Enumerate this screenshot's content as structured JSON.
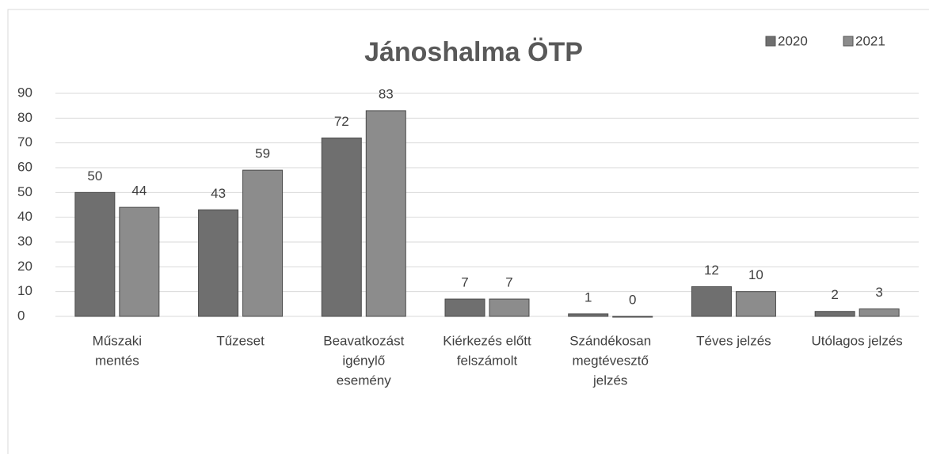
{
  "chart_data": {
    "type": "bar",
    "title": "Jánoshalma ÖTP",
    "categories": [
      [
        "Műszaki",
        "mentés"
      ],
      [
        "Tűzeset"
      ],
      [
        "Beavatkozást",
        "igénylő",
        "esemény"
      ],
      [
        "Kiérkezés előtt",
        "felszámolt"
      ],
      [
        "Szándékosan",
        "megtévesztő",
        "jelzés"
      ],
      [
        "Téves jelzés"
      ],
      [
        "Utólagos jelzés"
      ]
    ],
    "series": [
      {
        "name": "2020",
        "color": "#6f6f6f",
        "values": [
          50,
          43,
          72,
          7,
          1,
          12,
          2
        ]
      },
      {
        "name": "2021",
        "color": "#8c8c8c",
        "values": [
          44,
          59,
          83,
          7,
          0,
          10,
          3
        ]
      }
    ],
    "ylim": [
      0,
      90
    ],
    "yticks": [
      0,
      10,
      20,
      30,
      40,
      50,
      60,
      70,
      80,
      90
    ],
    "grid": true,
    "legend": "top-right"
  }
}
